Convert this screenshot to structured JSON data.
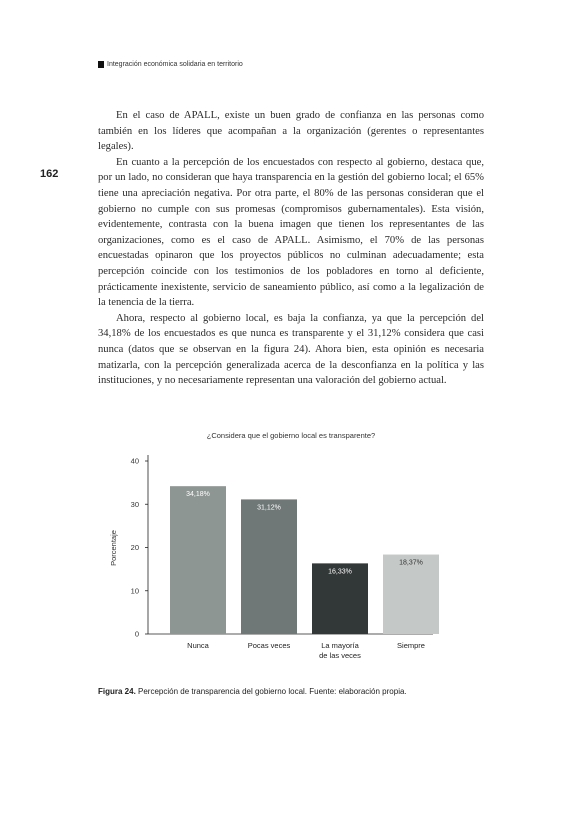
{
  "header": {
    "running_title": "Integración económica solidaria en territorio"
  },
  "page_number": "162",
  "paragraphs": [
    "En el caso de APALL, existe un buen grado de confianza en las personas como también en los líderes que acompañan a la organización (gerentes o representantes legales).",
    "En cuanto a la percepción de los encuestados con respecto al gobierno, destaca que, por un lado, no consideran que haya transparencia en la gestión del gobierno local; el 65% tiene una apreciación negativa. Por otra parte, el 80% de las personas consideran que el gobierno no cumple con sus promesas (compromisos gubernamentales). Esta visión, evidentemente, contrasta con la buena imagen que tienen los representantes de las organizaciones, como es el caso de APALL. Asimismo, el 70% de las personas encuestadas opinaron que los proyectos públicos no culminan adecuadamente; esta percepción coincide con los testimonios de los pobladores en torno al deficiente, prácticamente inexistente, servicio de saneamiento público, así como a la legalización de la tenencia de la tierra.",
    "Ahora, respecto al gobierno local, es baja la confianza, ya que la percepción del 34,18% de los encuestados es que nunca es transparente y el 31,12% considera que casi nunca (datos que se observan en la figura 24). Ahora bien, esta opinión es necesaria matizarla, con la percepción generalizada acerca de la desconfianza en la política y las instituciones, y no necesariamente representan una valoración del gobierno actual."
  ],
  "figure_caption": {
    "label": "Figura 24.",
    "text": " Percepción de transparencia del gobierno local. Fuente: elaboración propia."
  },
  "chart_data": {
    "type": "bar",
    "title": "¿Considera que el gobierno local es transparente?",
    "ylabel": "Porcentaje",
    "xlabel": "",
    "ylim": [
      0,
      40
    ],
    "yticks": [
      0,
      10,
      20,
      30,
      40
    ],
    "categories": [
      "Nunca",
      "Pocas veces",
      "La mayoría de las veces",
      "Siempre"
    ],
    "category_lines": [
      [
        "Nunca"
      ],
      [
        "Pocas veces"
      ],
      [
        "La mayoría",
        "de las veces"
      ],
      [
        "Siempre"
      ]
    ],
    "values": [
      34.18,
      31.12,
      16.33,
      18.37
    ],
    "value_labels": [
      "34,18%",
      "31,12%",
      "16,33%",
      "18,37%"
    ],
    "colors": [
      "#8e9694",
      "#6f7877",
      "#323738",
      "#c4c8c7"
    ],
    "label_colors": [
      "#ffffff",
      "#ffffff",
      "#ffffff",
      "#333333"
    ]
  }
}
